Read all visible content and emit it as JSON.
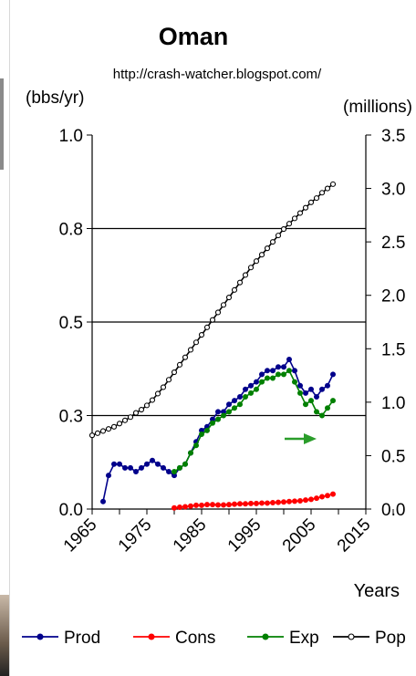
{
  "chart_data": {
    "type": "line",
    "title": "Oman",
    "subtitle": "http://crash-watcher.blogspot.com/",
    "ylabel": "(bbs/yr)",
    "y2label": "(millions)",
    "xlabel": "Years",
    "xlim": [
      1965,
      2015
    ],
    "ylim": [
      0,
      1.0
    ],
    "y2lim": [
      0,
      3.5
    ],
    "x_ticks": [
      "1965",
      "1975",
      "1985",
      "1995",
      "2005",
      "2015"
    ],
    "y_ticks": [
      "0.0",
      "0.3",
      "0.5",
      "0.8",
      "1.0"
    ],
    "y_tick_values": [
      0,
      0.25,
      0.5,
      0.75,
      1.0
    ],
    "y2_ticks": [
      "0.0",
      "0.5",
      "1.0",
      "1.5",
      "2.0",
      "2.5",
      "3.0",
      "3.5"
    ],
    "y2_tick_values": [
      0,
      0.5,
      1.0,
      1.5,
      2.0,
      2.5,
      3.0,
      3.5
    ],
    "gridlines": [
      0.25,
      0.5,
      0.75
    ],
    "legend_position": "bottom",
    "legend": [
      "Prod",
      "Cons",
      "Exp",
      "Pop"
    ],
    "colors": {
      "Prod": "#00008b",
      "Cons": "#ff0000",
      "Exp": "#008000",
      "Pop": "#000000",
      "arrow": "#2a9d2a"
    },
    "series": [
      {
        "name": "Prod",
        "axis": "left",
        "x": [
          1967,
          1968,
          1969,
          1970,
          1971,
          1972,
          1973,
          1974,
          1975,
          1976,
          1977,
          1978,
          1979,
          1980,
          1981,
          1982,
          1983,
          1984,
          1985,
          1986,
          1987,
          1988,
          1989,
          1990,
          1991,
          1992,
          1993,
          1994,
          1995,
          1996,
          1997,
          1998,
          1999,
          2000,
          2001,
          2002,
          2003,
          2004,
          2005,
          2006,
          2007,
          2008,
          2009
        ],
        "y": [
          0.02,
          0.09,
          0.12,
          0.12,
          0.11,
          0.11,
          0.1,
          0.11,
          0.12,
          0.13,
          0.12,
          0.11,
          0.1,
          0.09,
          0.11,
          0.12,
          0.15,
          0.18,
          0.21,
          0.22,
          0.24,
          0.26,
          0.26,
          0.28,
          0.29,
          0.3,
          0.32,
          0.33,
          0.34,
          0.36,
          0.37,
          0.37,
          0.38,
          0.38,
          0.4,
          0.37,
          0.33,
          0.31,
          0.32,
          0.3,
          0.32,
          0.33,
          0.36
        ]
      },
      {
        "name": "Cons",
        "axis": "left",
        "x": [
          1980,
          1981,
          1982,
          1983,
          1984,
          1985,
          1986,
          1987,
          1988,
          1989,
          1990,
          1991,
          1992,
          1993,
          1994,
          1995,
          1996,
          1997,
          1998,
          1999,
          2000,
          2001,
          2002,
          2003,
          2004,
          2005,
          2006,
          2007,
          2008,
          2009
        ],
        "y": [
          0.003,
          0.005,
          0.006,
          0.008,
          0.01,
          0.01,
          0.012,
          0.012,
          0.011,
          0.011,
          0.012,
          0.013,
          0.014,
          0.014,
          0.015,
          0.015,
          0.016,
          0.016,
          0.017,
          0.018,
          0.019,
          0.02,
          0.021,
          0.022,
          0.024,
          0.026,
          0.029,
          0.033,
          0.036,
          0.04
        ]
      },
      {
        "name": "Exp",
        "axis": "left",
        "x": [
          1980,
          1981,
          1982,
          1983,
          1984,
          1985,
          1986,
          1987,
          1988,
          1989,
          1990,
          1991,
          1992,
          1993,
          1994,
          1995,
          1996,
          1997,
          1998,
          1999,
          2000,
          2001,
          2002,
          2003,
          2004,
          2005,
          2006,
          2007,
          2008,
          2009
        ],
        "y": [
          0.1,
          0.11,
          0.12,
          0.15,
          0.17,
          0.2,
          0.21,
          0.23,
          0.24,
          0.25,
          0.26,
          0.27,
          0.28,
          0.3,
          0.31,
          0.32,
          0.34,
          0.35,
          0.35,
          0.36,
          0.36,
          0.37,
          0.34,
          0.31,
          0.28,
          0.29,
          0.26,
          0.25,
          0.27,
          0.29
        ]
      },
      {
        "name": "Pop",
        "axis": "right",
        "x": [
          1965,
          1966,
          1967,
          1968,
          1969,
          1970,
          1971,
          1972,
          1973,
          1974,
          1975,
          1976,
          1977,
          1978,
          1979,
          1980,
          1981,
          1982,
          1983,
          1984,
          1985,
          1986,
          1987,
          1988,
          1989,
          1990,
          1991,
          1992,
          1993,
          1994,
          1995,
          1996,
          1997,
          1998,
          1999,
          2000,
          2001,
          2002,
          2003,
          2004,
          2005,
          2006,
          2007,
          2008,
          2009
        ],
        "y": [
          0.69,
          0.71,
          0.73,
          0.75,
          0.77,
          0.8,
          0.83,
          0.86,
          0.9,
          0.93,
          0.97,
          1.02,
          1.08,
          1.14,
          1.21,
          1.28,
          1.35,
          1.42,
          1.49,
          1.56,
          1.63,
          1.7,
          1.77,
          1.84,
          1.91,
          1.98,
          2.05,
          2.12,
          2.19,
          2.26,
          2.32,
          2.38,
          2.44,
          2.5,
          2.56,
          2.62,
          2.67,
          2.72,
          2.77,
          2.82,
          2.87,
          2.91,
          2.96,
          3.0,
          3.04
        ]
      }
    ]
  }
}
